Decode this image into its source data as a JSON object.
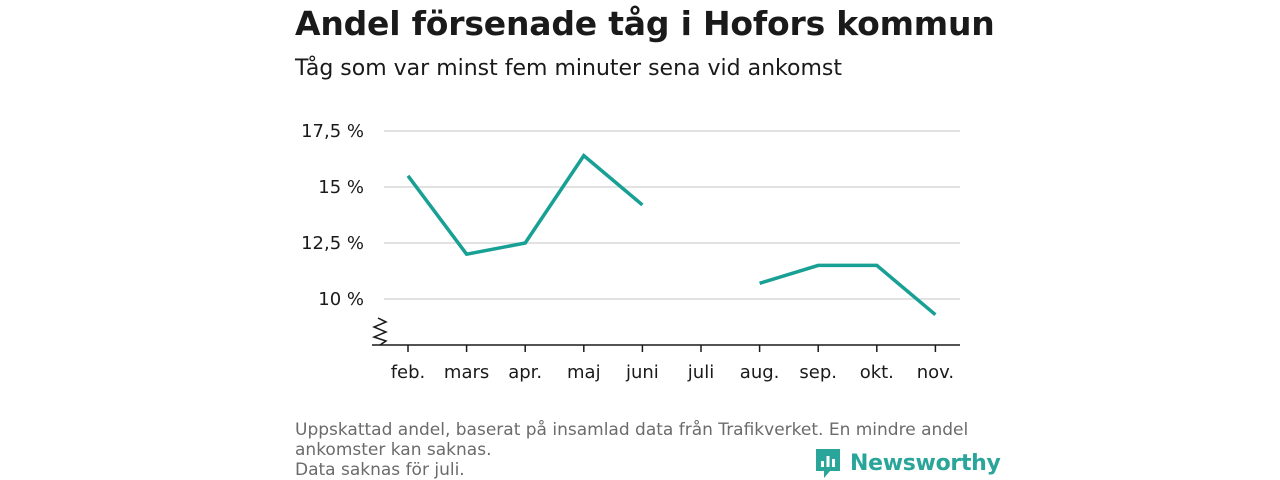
{
  "header": {
    "title": "Andel försenade tåg i Hofors kommun",
    "subtitle": "Tåg som var minst fem minuter sena vid ankomst"
  },
  "chart_data": {
    "type": "line",
    "title": "Andel försenade tåg i Hofors kommun",
    "subtitle": "Tåg som var minst fem minuter sena vid ankomst",
    "categories": [
      "feb.",
      "mars",
      "apr.",
      "maj",
      "juni",
      "juli",
      "aug.",
      "sep.",
      "okt.",
      "nov."
    ],
    "series": [
      {
        "values": [
          15.5,
          12.0,
          12.5,
          16.4,
          14.2,
          null,
          10.7,
          11.5,
          11.5,
          9.3
        ]
      }
    ],
    "yticks": [
      10,
      12.5,
      15,
      17.5
    ],
    "ytick_labels": [
      "10 %",
      "12,5 %",
      "15 %",
      "17,5 %"
    ],
    "ylim": [
      8,
      17.5
    ],
    "y_axis_break": true,
    "grid": "horizontal",
    "line_color": "#18a095",
    "xlabel": "",
    "ylabel": ""
  },
  "footer": {
    "note_line1": "Uppskattad andel, baserat på insamlad data från Trafikverket. En mindre andel ankomster kan saknas.",
    "note_line2": "Data saknas för juli.",
    "brand": "Newsworthy",
    "brand_icon": "newsworthy-logo-icon",
    "brand_color": "#2aa59a"
  }
}
